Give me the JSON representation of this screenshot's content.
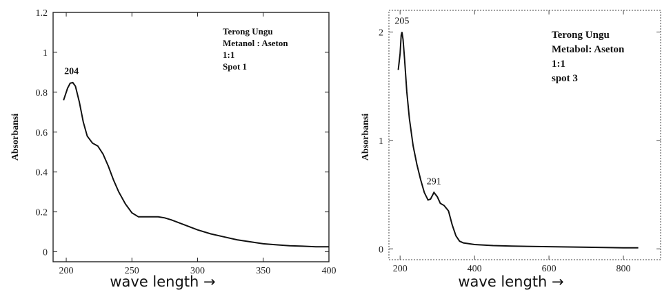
{
  "chart_data": [
    {
      "type": "line",
      "title": "",
      "xlabel": "wave length →",
      "ylabel": "Absorbansi",
      "xlim": [
        190,
        400
      ],
      "ylim": [
        -0.05,
        1.2
      ],
      "xticks": [
        200,
        250,
        300,
        350,
        400
      ],
      "yticks": [
        0,
        0.2,
        0.4,
        0.6,
        0.8,
        1,
        1.2
      ],
      "annotation_lines": [
        "Terong Ungu",
        "Metanol : Aseton",
        "1:1",
        "Spot 1"
      ],
      "peak_label": {
        "text": "204",
        "x": 204,
        "y": 0.85
      },
      "series": [
        {
          "x": [
            198,
            201,
            203,
            205,
            207,
            210,
            213,
            216,
            220,
            224,
            228,
            232,
            236,
            240,
            245,
            250,
            255,
            260,
            270,
            275,
            280,
            290,
            300,
            310,
            320,
            330,
            340,
            350,
            360,
            370,
            380,
            390,
            400
          ],
          "y": [
            0.76,
            0.82,
            0.845,
            0.848,
            0.83,
            0.75,
            0.65,
            0.58,
            0.545,
            0.53,
            0.49,
            0.43,
            0.36,
            0.3,
            0.24,
            0.195,
            0.175,
            0.175,
            0.175,
            0.17,
            0.16,
            0.135,
            0.11,
            0.09,
            0.075,
            0.06,
            0.05,
            0.04,
            0.035,
            0.03,
            0.028,
            0.025,
            0.025
          ]
        }
      ],
      "grid": false
    },
    {
      "type": "line",
      "title": "",
      "xlabel": "wave length →",
      "ylabel": "Absorbansi",
      "xlim": [
        170,
        900
      ],
      "ylim": [
        -0.1,
        2.2
      ],
      "xticks": [
        200,
        400,
        600,
        800
      ],
      "yticks": [
        0,
        1,
        2
      ],
      "annotation_lines": [
        "Terong Ungu",
        "Metabol: Aseton",
        "1:1",
        "spot 3"
      ],
      "peak_labels": [
        {
          "text": "205",
          "x": 205,
          "y": 2.0
        },
        {
          "text": "291",
          "x": 291,
          "y": 0.52
        }
      ],
      "series": [
        {
          "x": [
            195,
            200,
            203,
            205,
            208,
            212,
            218,
            225,
            235,
            245,
            255,
            265,
            275,
            282,
            291,
            300,
            308,
            318,
            330,
            340,
            350,
            360,
            370,
            380,
            400,
            450,
            500,
            600,
            700,
            800,
            840
          ],
          "y": [
            1.65,
            1.8,
            1.97,
            2.0,
            1.93,
            1.75,
            1.45,
            1.2,
            0.95,
            0.78,
            0.64,
            0.52,
            0.45,
            0.46,
            0.52,
            0.48,
            0.42,
            0.4,
            0.35,
            0.22,
            0.12,
            0.07,
            0.055,
            0.05,
            0.04,
            0.03,
            0.025,
            0.02,
            0.015,
            0.01,
            0.01
          ]
        }
      ],
      "grid": false
    }
  ]
}
